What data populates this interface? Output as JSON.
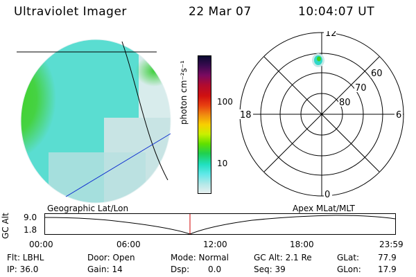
{
  "header": {
    "title": "Ultraviolet Imager",
    "date": "22 Mar 07",
    "time": "10:04:07 UT"
  },
  "colorbar": {
    "label": "photon cm⁻²s⁻¹",
    "ticks": [
      "100",
      "10"
    ],
    "colors": [
      "#0a0a30",
      "#3a0a50",
      "#7a0a60",
      "#b00a30",
      "#d01010",
      "#e84010",
      "#f08c10",
      "#f8d000",
      "#c8f000",
      "#60e000",
      "#20d050",
      "#20e0c0",
      "#60e8e8",
      "#b0e8e8",
      "#e8f0f0"
    ]
  },
  "geo_panel": {
    "label": "Geographic Lat/Lon",
    "colors": {
      "green": "#40d020",
      "cyan": "#30d8c8",
      "light": "#c8e8e8",
      "line_black": "#000000",
      "line_blue": "#1030d0"
    }
  },
  "polar_panel": {
    "label": "Apex MLat/MLT",
    "mlt_labels": {
      "top": "12",
      "left": "18",
      "right": "6",
      "bottom": "0"
    },
    "lat_labels": [
      "60",
      "70",
      "80"
    ]
  },
  "timeline": {
    "ylabel": "GC Alt",
    "ymax": "9.0",
    "ymin": "1.8",
    "x_ticks": [
      "00:00",
      "06:00",
      "12:00",
      "18:00",
      "23:59"
    ],
    "marker_color": "#d00000"
  },
  "info": {
    "row1": {
      "flt": "Flt: LBHL",
      "door": "Door: Open",
      "mode": "Mode: Normal",
      "gcalt": "GC Alt: 2.1 Re",
      "glat_label": "GLat:",
      "glat_value": "77.9"
    },
    "row2": {
      "ip": "IP: 36.0",
      "gain": "Gain: 14",
      "dsp_label": "Dsp:",
      "dsp_value": "0.0",
      "seq": "Seq: 39",
      "glon_label": "GLon:",
      "glon_value": "17.9"
    }
  }
}
